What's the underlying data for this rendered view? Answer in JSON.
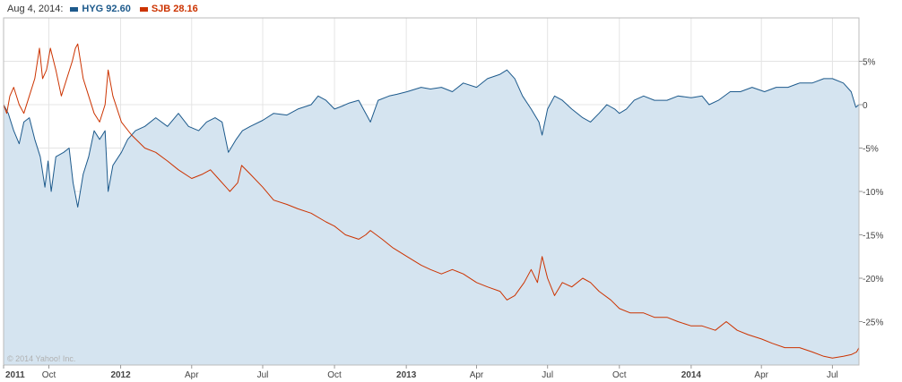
{
  "legend": {
    "date": "Aug 4, 2014:",
    "entries": [
      {
        "label": "HYG 92.60",
        "color": "#1d5a8c"
      },
      {
        "label": "SJB 28.16",
        "color": "#cc3300"
      }
    ]
  },
  "watermark": "© 2014 Yahoo! Inc.",
  "chart_data": {
    "type": "line",
    "ylim": [
      -30,
      10
    ],
    "y_ticks": [
      5,
      0,
      -5,
      -10,
      -15,
      -20,
      -25
    ],
    "y_tick_labels": [
      "5%",
      "0",
      "-5%",
      "-10%",
      "-15%",
      "-20%",
      "-25%"
    ],
    "x_range": [
      "2011-08-04",
      "2014-08-04"
    ],
    "x_ticks": [
      {
        "date": "2011-08-04",
        "label": "2011"
      },
      {
        "date": "2011-10-01",
        "label": "Oct"
      },
      {
        "date": "2012-01-01",
        "label": "2012"
      },
      {
        "date": "2012-04-01",
        "label": "Apr"
      },
      {
        "date": "2012-07-01",
        "label": "Jul"
      },
      {
        "date": "2012-10-01",
        "label": "Oct"
      },
      {
        "date": "2013-01-01",
        "label": "2013"
      },
      {
        "date": "2013-04-01",
        "label": "Apr"
      },
      {
        "date": "2013-07-01",
        "label": "Jul"
      },
      {
        "date": "2013-10-01",
        "label": "Oct"
      },
      {
        "date": "2014-01-01",
        "label": "2014"
      },
      {
        "date": "2014-04-01",
        "label": "Apr"
      },
      {
        "date": "2014-07-01",
        "label": "Jul"
      }
    ],
    "grid": true,
    "series": [
      {
        "name": "HYG",
        "color": "#1d5a8c",
        "fill": "#d5e4f0",
        "points": [
          [
            "2011-08-04",
            0
          ],
          [
            "2011-08-10",
            -1
          ],
          [
            "2011-08-17",
            -3
          ],
          [
            "2011-08-24",
            -4.5
          ],
          [
            "2011-08-30",
            -2
          ],
          [
            "2011-09-06",
            -1.5
          ],
          [
            "2011-09-13",
            -4
          ],
          [
            "2011-09-20",
            -6
          ],
          [
            "2011-09-26",
            -9.5
          ],
          [
            "2011-09-30",
            -6.5
          ],
          [
            "2011-10-04",
            -10
          ],
          [
            "2011-10-10",
            -6
          ],
          [
            "2011-10-20",
            -5.5
          ],
          [
            "2011-10-27",
            -5
          ],
          [
            "2011-11-01",
            -9
          ],
          [
            "2011-11-07",
            -11.8
          ],
          [
            "2011-11-14",
            -8
          ],
          [
            "2011-11-21",
            -6
          ],
          [
            "2011-11-28",
            -3
          ],
          [
            "2011-12-05",
            -4
          ],
          [
            "2011-12-12",
            -3
          ],
          [
            "2011-12-16",
            -10
          ],
          [
            "2011-12-22",
            -7
          ],
          [
            "2012-01-02",
            -5.5
          ],
          [
            "2012-01-10",
            -4
          ],
          [
            "2012-01-20",
            -3
          ],
          [
            "2012-02-01",
            -2.5
          ],
          [
            "2012-02-15",
            -1.5
          ],
          [
            "2012-03-01",
            -2.5
          ],
          [
            "2012-03-15",
            -1
          ],
          [
            "2012-03-28",
            -2.5
          ],
          [
            "2012-04-10",
            -3
          ],
          [
            "2012-04-20",
            -2
          ],
          [
            "2012-05-01",
            -1.5
          ],
          [
            "2012-05-10",
            -2
          ],
          [
            "2012-05-18",
            -5.5
          ],
          [
            "2012-05-28",
            -4
          ],
          [
            "2012-06-05",
            -3
          ],
          [
            "2012-06-15",
            -2.5
          ],
          [
            "2012-07-01",
            -1.8
          ],
          [
            "2012-07-15",
            -1
          ],
          [
            "2012-08-01",
            -1.2
          ],
          [
            "2012-08-15",
            -0.5
          ],
          [
            "2012-09-01",
            0
          ],
          [
            "2012-09-10",
            1
          ],
          [
            "2012-09-20",
            0.5
          ],
          [
            "2012-10-01",
            -0.5
          ],
          [
            "2012-10-10",
            -0.2
          ],
          [
            "2012-10-20",
            0.2
          ],
          [
            "2012-11-01",
            0.5
          ],
          [
            "2012-11-10",
            -1
          ],
          [
            "2012-11-16",
            -2
          ],
          [
            "2012-11-26",
            0.5
          ],
          [
            "2012-12-10",
            1
          ],
          [
            "2012-12-20",
            1.2
          ],
          [
            "2013-01-02",
            1.5
          ],
          [
            "2013-01-20",
            2
          ],
          [
            "2013-02-01",
            1.8
          ],
          [
            "2013-02-15",
            2
          ],
          [
            "2013-03-01",
            1.5
          ],
          [
            "2013-03-15",
            2.5
          ],
          [
            "2013-04-01",
            2
          ],
          [
            "2013-04-15",
            3
          ],
          [
            "2013-05-01",
            3.5
          ],
          [
            "2013-05-10",
            4
          ],
          [
            "2013-05-20",
            3
          ],
          [
            "2013-05-30",
            1
          ],
          [
            "2013-06-10",
            -0.5
          ],
          [
            "2013-06-20",
            -2
          ],
          [
            "2013-06-24",
            -3.5
          ],
          [
            "2013-07-01",
            -0.5
          ],
          [
            "2013-07-10",
            1
          ],
          [
            "2013-07-20",
            0.5
          ],
          [
            "2013-08-01",
            -0.5
          ],
          [
            "2013-08-15",
            -1.5
          ],
          [
            "2013-08-25",
            -2
          ],
          [
            "2013-09-05",
            -1
          ],
          [
            "2013-09-15",
            0
          ],
          [
            "2013-09-25",
            -0.5
          ],
          [
            "2013-10-01",
            -1
          ],
          [
            "2013-10-10",
            -0.5
          ],
          [
            "2013-10-20",
            0.5
          ],
          [
            "2013-11-01",
            1
          ],
          [
            "2013-11-15",
            0.5
          ],
          [
            "2013-12-01",
            0.5
          ],
          [
            "2013-12-15",
            1
          ],
          [
            "2014-01-01",
            0.8
          ],
          [
            "2014-01-15",
            1
          ],
          [
            "2014-01-24",
            0
          ],
          [
            "2014-02-05",
            0.5
          ],
          [
            "2014-02-20",
            1.5
          ],
          [
            "2014-03-05",
            1.5
          ],
          [
            "2014-03-20",
            2
          ],
          [
            "2014-04-05",
            1.5
          ],
          [
            "2014-04-20",
            2
          ],
          [
            "2014-05-05",
            2
          ],
          [
            "2014-05-20",
            2.5
          ],
          [
            "2014-06-05",
            2.5
          ],
          [
            "2014-06-20",
            3
          ],
          [
            "2014-07-01",
            3
          ],
          [
            "2014-07-15",
            2.5
          ],
          [
            "2014-07-25",
            1.5
          ],
          [
            "2014-07-31",
            -0.3
          ],
          [
            "2014-08-04",
            0
          ]
        ]
      },
      {
        "name": "SJB",
        "color": "#cc3300",
        "points": [
          [
            "2011-08-04",
            0
          ],
          [
            "2011-08-08",
            -1
          ],
          [
            "2011-08-12",
            1
          ],
          [
            "2011-08-17",
            2
          ],
          [
            "2011-08-24",
            0
          ],
          [
            "2011-08-30",
            -1
          ],
          [
            "2011-09-06",
            1
          ],
          [
            "2011-09-13",
            3
          ],
          [
            "2011-09-19",
            6.5
          ],
          [
            "2011-09-23",
            3
          ],
          [
            "2011-09-28",
            4
          ],
          [
            "2011-10-03",
            6.5
          ],
          [
            "2011-10-10",
            4
          ],
          [
            "2011-10-17",
            1
          ],
          [
            "2011-10-24",
            3
          ],
          [
            "2011-10-31",
            5
          ],
          [
            "2011-11-04",
            6.5
          ],
          [
            "2011-11-07",
            7
          ],
          [
            "2011-11-14",
            3
          ],
          [
            "2011-11-21",
            1
          ],
          [
            "2011-11-28",
            -1
          ],
          [
            "2011-12-05",
            -2
          ],
          [
            "2011-12-12",
            0
          ],
          [
            "2011-12-16",
            4
          ],
          [
            "2011-12-22",
            1
          ],
          [
            "2012-01-02",
            -2
          ],
          [
            "2012-01-15",
            -3.5
          ],
          [
            "2012-02-01",
            -5
          ],
          [
            "2012-02-15",
            -5.5
          ],
          [
            "2012-03-01",
            -6.5
          ],
          [
            "2012-03-15",
            -7.5
          ],
          [
            "2012-04-01",
            -8.5
          ],
          [
            "2012-04-15",
            -8
          ],
          [
            "2012-04-25",
            -7.5
          ],
          [
            "2012-05-05",
            -8.5
          ],
          [
            "2012-05-20",
            -10
          ],
          [
            "2012-05-30",
            -9
          ],
          [
            "2012-06-04",
            -7
          ],
          [
            "2012-06-15",
            -8
          ],
          [
            "2012-07-01",
            -9.5
          ],
          [
            "2012-07-15",
            -11
          ],
          [
            "2012-08-01",
            -11.5
          ],
          [
            "2012-08-15",
            -12
          ],
          [
            "2012-09-01",
            -12.5
          ],
          [
            "2012-09-20",
            -13.5
          ],
          [
            "2012-10-01",
            -14
          ],
          [
            "2012-10-15",
            -15
          ],
          [
            "2012-11-01",
            -15.5
          ],
          [
            "2012-11-10",
            -15
          ],
          [
            "2012-11-16",
            -14.5
          ],
          [
            "2012-12-01",
            -15.5
          ],
          [
            "2012-12-15",
            -16.5
          ],
          [
            "2013-01-02",
            -17.5
          ],
          [
            "2013-01-20",
            -18.5
          ],
          [
            "2013-02-01",
            -19
          ],
          [
            "2013-02-15",
            -19.5
          ],
          [
            "2013-03-01",
            -19
          ],
          [
            "2013-03-15",
            -19.5
          ],
          [
            "2013-04-01",
            -20.5
          ],
          [
            "2013-04-15",
            -21
          ],
          [
            "2013-05-01",
            -21.5
          ],
          [
            "2013-05-10",
            -22.5
          ],
          [
            "2013-05-20",
            -22
          ],
          [
            "2013-06-01",
            -20.5
          ],
          [
            "2013-06-10",
            -19
          ],
          [
            "2013-06-18",
            -20.5
          ],
          [
            "2013-06-24",
            -17.5
          ],
          [
            "2013-07-01",
            -20
          ],
          [
            "2013-07-10",
            -22
          ],
          [
            "2013-07-20",
            -20.5
          ],
          [
            "2013-08-01",
            -21
          ],
          [
            "2013-08-15",
            -20
          ],
          [
            "2013-08-25",
            -20.5
          ],
          [
            "2013-09-05",
            -21.5
          ],
          [
            "2013-09-20",
            -22.5
          ],
          [
            "2013-10-01",
            -23.5
          ],
          [
            "2013-10-15",
            -24
          ],
          [
            "2013-11-01",
            -24
          ],
          [
            "2013-11-15",
            -24.5
          ],
          [
            "2013-12-01",
            -24.5
          ],
          [
            "2013-12-15",
            -25
          ],
          [
            "2014-01-01",
            -25.5
          ],
          [
            "2014-01-15",
            -25.5
          ],
          [
            "2014-02-01",
            -26
          ],
          [
            "2014-02-15",
            -25
          ],
          [
            "2014-03-01",
            -26
          ],
          [
            "2014-03-15",
            -26.5
          ],
          [
            "2014-04-01",
            -27
          ],
          [
            "2014-04-15",
            -27.5
          ],
          [
            "2014-05-01",
            -28
          ],
          [
            "2014-05-20",
            -28
          ],
          [
            "2014-06-05",
            -28.5
          ],
          [
            "2014-06-20",
            -29
          ],
          [
            "2014-07-01",
            -29.2
          ],
          [
            "2014-07-15",
            -29
          ],
          [
            "2014-07-25",
            -28.8
          ],
          [
            "2014-08-01",
            -28.5
          ],
          [
            "2014-08-04",
            -28
          ]
        ]
      }
    ]
  }
}
